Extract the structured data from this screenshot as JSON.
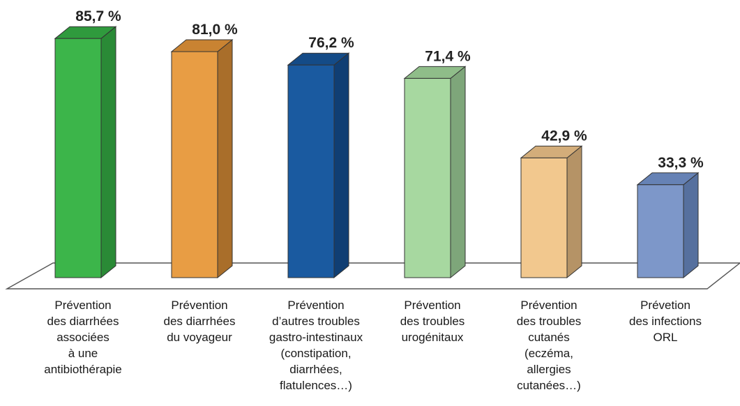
{
  "chart_data": {
    "type": "bar",
    "categories": [
      [
        "Prévention",
        "des diarrhées",
        "associées",
        "à une",
        "antibiothérapie"
      ],
      [
        "Prévention",
        "des diarrhées",
        "du voyageur"
      ],
      [
        "Prévention",
        "d’autres troubles",
        "gastro-intestinaux",
        "(constipation,",
        "diarrhées,",
        "flatulences…)"
      ],
      [
        "Prévention",
        "des troubles",
        "urogénitaux"
      ],
      [
        "Prévention",
        "des troubles",
        "cutanés",
        "(eczéma,",
        "allergies",
        "cutanées…)"
      ],
      [
        "Prévetion",
        "des infections",
        "ORL"
      ]
    ],
    "values": [
      85.7,
      81.0,
      76.2,
      71.4,
      42.9,
      33.3
    ],
    "value_labels": [
      "85,7 %",
      "81,0 %",
      "76,2 %",
      "71,4 %",
      "42,9 %",
      "33,3 %"
    ],
    "colors": [
      {
        "front": "#3cb54a",
        "side": "#2a8a36",
        "top": "#2f9a3d"
      },
      {
        "front": "#e89d44",
        "side": "#a96e2a",
        "top": "#c98332"
      },
      {
        "front": "#1a5aa0",
        "side": "#103e73",
        "top": "#144b87"
      },
      {
        "front": "#a7d8a0",
        "side": "#7ea67a",
        "top": "#8fbd89"
      },
      {
        "front": "#f2c88e",
        "side": "#b59366",
        "top": "#d3ad7a"
      },
      {
        "front": "#7d97c9",
        "side": "#56709e",
        "top": "#6682b5"
      }
    ],
    "title": "",
    "xlabel": "",
    "ylabel": "",
    "ylim": [
      0,
      100
    ],
    "grid": false,
    "legend": "none"
  }
}
